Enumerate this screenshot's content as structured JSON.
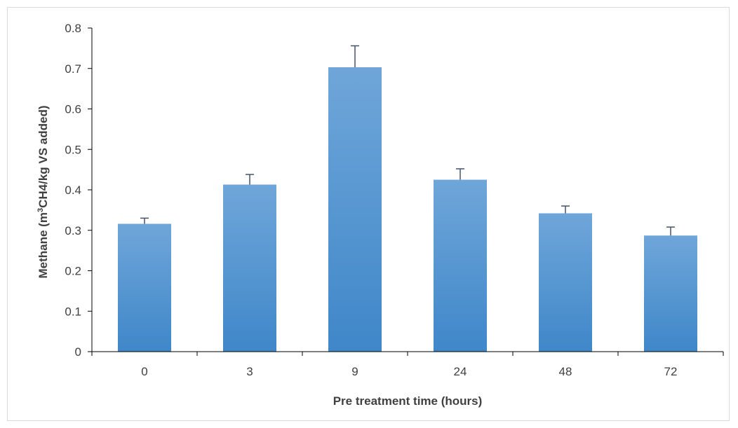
{
  "chart_data": {
    "type": "bar",
    "categories": [
      "0",
      "3",
      "9",
      "24",
      "48",
      "72"
    ],
    "values": [
      0.316,
      0.413,
      0.703,
      0.425,
      0.342,
      0.287
    ],
    "error_plus": [
      0.014,
      0.025,
      0.053,
      0.027,
      0.018,
      0.021
    ],
    "xlabel": "Pre treatment time (hours)",
    "ylabel": {
      "before_superscript": "Methane (m",
      "superscript": "3",
      "after_superscript": "CH4/kg VS added)"
    },
    "ylim": [
      0,
      0.8
    ],
    "yticks": [
      "0",
      "0.1",
      "0.2",
      "0.3",
      "0.4",
      "0.5",
      "0.6",
      "0.7",
      "0.8"
    ],
    "grid": false,
    "legend": "none",
    "colors": {
      "bar_top": "#6fa6d9",
      "bar_bottom": "#3f87c9",
      "axis": "#000000",
      "error_bar": "#44546a",
      "text": "#404040"
    }
  }
}
